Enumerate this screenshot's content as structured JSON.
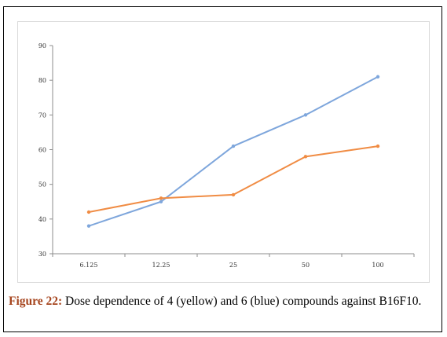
{
  "chart_data": {
    "type": "line",
    "categories": [
      "6.125",
      "12.25",
      "25",
      "50",
      "100"
    ],
    "ylim": [
      30,
      90
    ],
    "yticks": [
      30,
      40,
      50,
      60,
      70,
      80,
      90
    ],
    "grid": false,
    "series": [
      {
        "color": "#7ea6dc",
        "values": [
          38,
          45,
          61,
          70,
          81
        ]
      },
      {
        "color": "#f08c44",
        "values": [
          42,
          46,
          47,
          58,
          61
        ]
      }
    ]
  },
  "caption": {
    "label": "Figure 22:",
    "text": " Dose dependence of 4 (yellow) and 6 (blue) compounds against B16F10."
  }
}
